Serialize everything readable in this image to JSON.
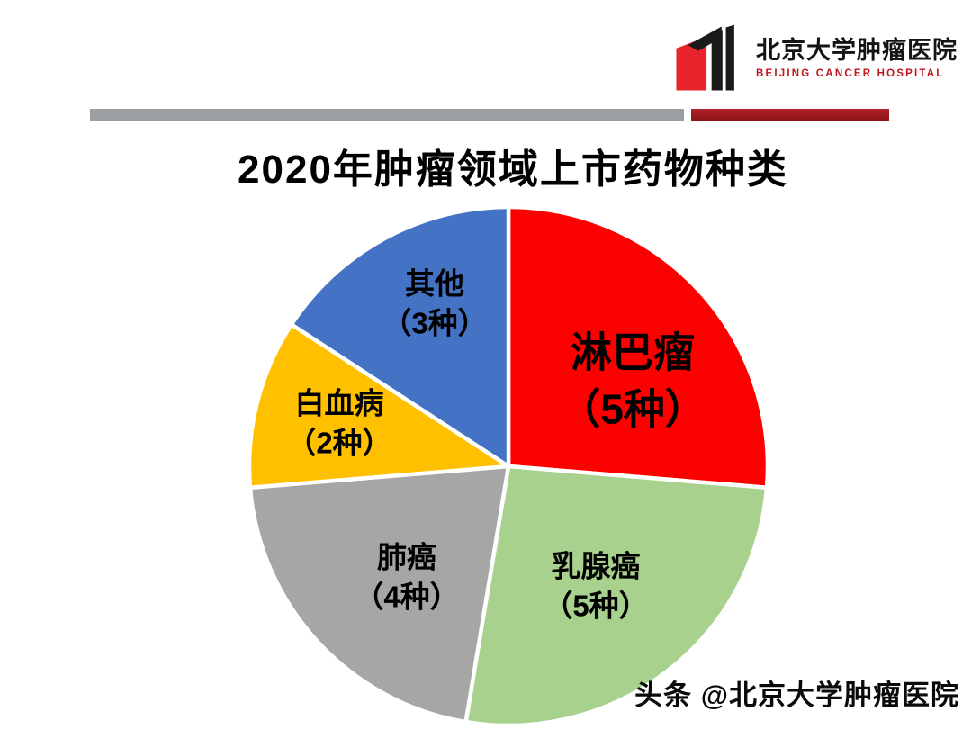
{
  "page": {
    "title": "2020年肿瘤领域上市药物种类",
    "watermark": "头条 @北京大学肿瘤医院"
  },
  "logo": {
    "cn_name": "北京大学肿瘤医院",
    "en_name": "BEIJING CANCER HOSPITAL"
  },
  "colors": {
    "divider_gray": "#9c9fa1",
    "divider_red": "#9e1b20",
    "logo_red": "#e8242c",
    "logo_black": "#1a1a1a"
  },
  "chart_data": {
    "type": "pie",
    "title": "2020年肿瘤领域上市药物种类",
    "total": 19,
    "unit": "种",
    "start_angle_deg": 0,
    "direction": "clockwise",
    "legend": "none",
    "labels_position": "inside",
    "slices": [
      {
        "id": "lymphoma",
        "name": "淋巴瘤",
        "count_label": "（5种）",
        "value": 5,
        "color": "#fb0200"
      },
      {
        "id": "breast-cancer",
        "name": "乳腺癌",
        "count_label": "（5种）",
        "value": 5,
        "color": "#a9d18e"
      },
      {
        "id": "lung-cancer",
        "name": "肺癌",
        "count_label": "（4种）",
        "value": 4,
        "color": "#a6a6a6"
      },
      {
        "id": "leukemia",
        "name": "白血病",
        "count_label": "（2种）",
        "value": 2,
        "color": "#ffc000"
      },
      {
        "id": "other",
        "name": "其他",
        "count_label": "（3种）",
        "value": 3,
        "color": "#4472c4"
      }
    ]
  }
}
